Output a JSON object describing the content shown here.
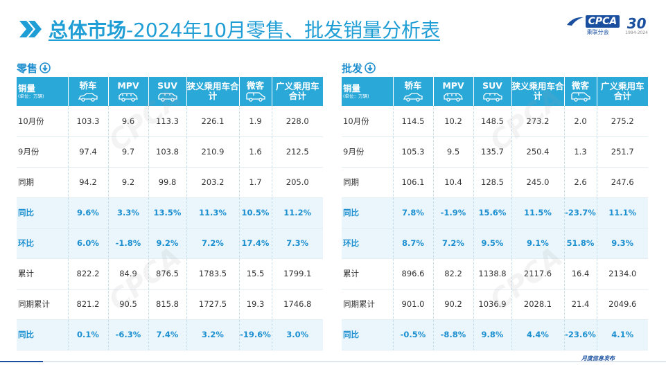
{
  "header": {
    "title_bold": "总体市场",
    "title_rest": "-2024年10月零售、批发销量分析表",
    "logo_text": "CPCA",
    "logo_sub": "乘联分会",
    "anniv_num": "30",
    "anniv_sub": "1994-2024"
  },
  "columns": {
    "first": "销量",
    "first_sub": "(单位：万辆)",
    "headers": [
      {
        "label": "轿车",
        "icon": "sedan-icon"
      },
      {
        "label": "MPV",
        "icon": "mpv-icon"
      },
      {
        "label": "SUV",
        "icon": "suv-icon"
      },
      {
        "label": "狭义乘用车合计",
        "icon": ""
      },
      {
        "label": "微客",
        "icon": "minivan-icon"
      },
      {
        "label": "广义乘用车合计",
        "icon": ""
      }
    ]
  },
  "retail": {
    "label": "零售",
    "rows": [
      {
        "label": "10月份",
        "highlight": false,
        "values": [
          "103.3",
          "9.6",
          "113.3",
          "226.1",
          "1.9",
          "228.0"
        ]
      },
      {
        "label": "9月份",
        "highlight": false,
        "values": [
          "97.4",
          "9.7",
          "103.8",
          "210.9",
          "1.6",
          "212.5"
        ]
      },
      {
        "label": "同期",
        "highlight": false,
        "values": [
          "94.2",
          "9.2",
          "99.8",
          "203.2",
          "1.7",
          "205.0"
        ]
      },
      {
        "label": "同比",
        "highlight": true,
        "values": [
          "9.6%",
          "3.3%",
          "13.5%",
          "11.3%",
          "10.5%",
          "11.2%"
        ]
      },
      {
        "label": "环比",
        "highlight": true,
        "values": [
          "6.0%",
          "-1.8%",
          "9.2%",
          "7.2%",
          "17.4%",
          "7.3%"
        ]
      },
      {
        "label": "累计",
        "highlight": false,
        "values": [
          "822.2",
          "84.9",
          "876.5",
          "1783.5",
          "15.5",
          "1799.1"
        ]
      },
      {
        "label": "同期累计",
        "highlight": false,
        "values": [
          "821.2",
          "90.5",
          "815.8",
          "1727.5",
          "19.3",
          "1746.8"
        ]
      },
      {
        "label": "同比",
        "highlight": true,
        "values": [
          "0.1%",
          "-6.3%",
          "7.4%",
          "3.2%",
          "-19.6%",
          "3.0%"
        ]
      }
    ]
  },
  "wholesale": {
    "label": "批发",
    "rows": [
      {
        "label": "10月份",
        "highlight": false,
        "values": [
          "114.5",
          "10.2",
          "148.5",
          "273.2",
          "2.0",
          "275.2"
        ]
      },
      {
        "label": "9月份",
        "highlight": false,
        "values": [
          "105.3",
          "9.5",
          "135.7",
          "250.4",
          "1.3",
          "251.7"
        ]
      },
      {
        "label": "同期",
        "highlight": false,
        "values": [
          "106.1",
          "10.4",
          "128.5",
          "245.0",
          "2.6",
          "247.6"
        ]
      },
      {
        "label": "同比",
        "highlight": true,
        "values": [
          "7.8%",
          "-1.9%",
          "15.6%",
          "11.5%",
          "-23.7%",
          "11.1%"
        ]
      },
      {
        "label": "环比",
        "highlight": true,
        "values": [
          "8.7%",
          "7.2%",
          "9.5%",
          "9.1%",
          "51.8%",
          "9.3%"
        ]
      },
      {
        "label": "累计",
        "highlight": false,
        "values": [
          "896.6",
          "82.2",
          "1138.8",
          "2117.6",
          "16.4",
          "2134.0"
        ]
      },
      {
        "label": "同期累计",
        "highlight": false,
        "values": [
          "901.0",
          "90.2",
          "1036.9",
          "2028.1",
          "21.4",
          "2049.6"
        ]
      },
      {
        "label": "同比",
        "highlight": true,
        "values": [
          "-0.5%",
          "-8.8%",
          "9.8%",
          "4.4%",
          "-23.6%",
          "4.1%"
        ]
      }
    ]
  },
  "footer": {
    "text": "月度信息发布"
  },
  "colors": {
    "accent": "#2aa8d8",
    "title": "#1f9ed6",
    "highlight_text": "#1b8fd0",
    "highlight_bg": "#eaf6fb",
    "brand": "#1a4fa0"
  }
}
